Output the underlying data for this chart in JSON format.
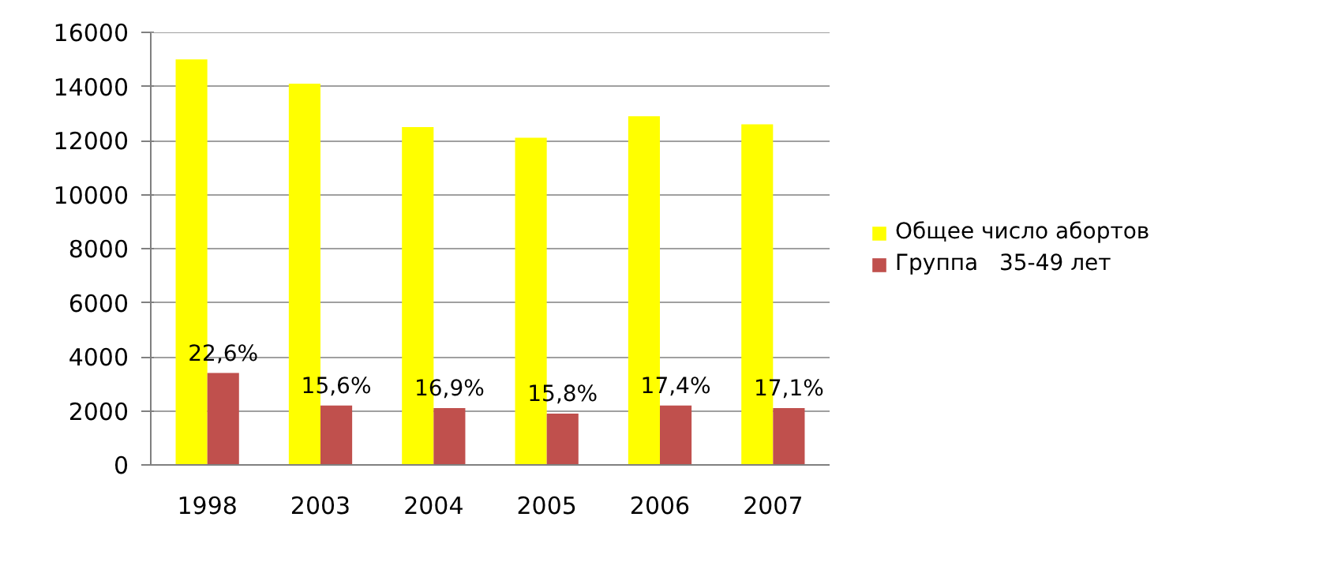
{
  "chart_data": {
    "type": "bar",
    "categories": [
      "1998",
      "2003",
      "2004",
      "2005",
      "2006",
      "2007"
    ],
    "series": [
      {
        "name": "Общее число абортов",
        "color": "#ffff00",
        "values": [
          15000,
          14100,
          12500,
          12100,
          12900,
          12600
        ]
      },
      {
        "name": "Группа   35-49 лет",
        "color": "#c0504d",
        "values": [
          3400,
          2200,
          2100,
          1900,
          2200,
          2100
        ]
      }
    ],
    "annotations": [
      {
        "text": "22,6%",
        "x": "1998",
        "y": 3400
      },
      {
        "text": "15,6%",
        "x": "2003",
        "y": 2200
      },
      {
        "text": "16,9%",
        "x": "2004",
        "y": 2100
      },
      {
        "text": "15,8%",
        "x": "2005",
        "y": 1900
      },
      {
        "text": "17,4%",
        "x": "2006",
        "y": 2200
      },
      {
        "text": "17,1%",
        "x": "2007",
        "y": 2100
      }
    ],
    "ylim": [
      0,
      16000
    ],
    "yticks": [
      0,
      2000,
      4000,
      6000,
      8000,
      10000,
      12000,
      14000,
      16000
    ],
    "grid": "y",
    "legend": "right"
  }
}
